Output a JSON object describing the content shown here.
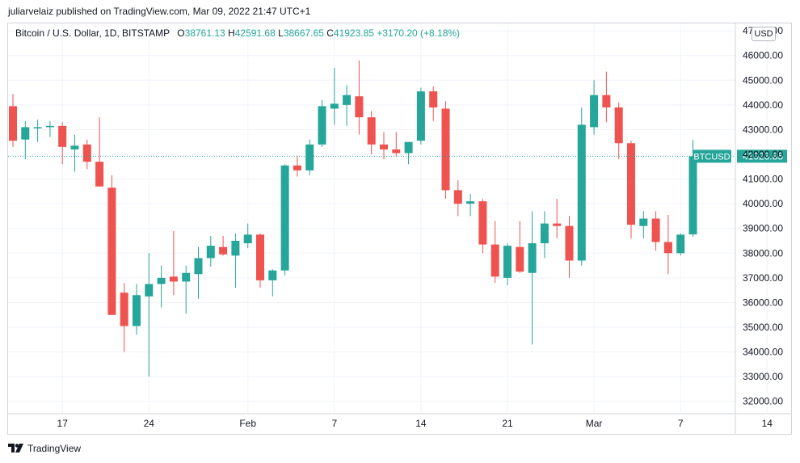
{
  "header": {
    "published_by": "juliarvelaiz published on TradingView.com, Mar 09, 2022 21:47 UTC+1"
  },
  "legend": {
    "symbol": "Bitcoin / U.S. Dollar, 1D, BITSTAMP",
    "o_label": "O",
    "o_value": "38761.13",
    "h_label": "H",
    "h_value": "42591.68",
    "l_label": "L",
    "l_value": "38667.65",
    "c_label": "C",
    "c_value": "41923.85",
    "change": "+3170.20 (+8.18%)"
  },
  "currency_button": "USD",
  "footer": {
    "brand": "TradingView"
  },
  "colors": {
    "up": "#26a69a",
    "down": "#ef5350",
    "grid": "#f0f3fa",
    "axis_text": "#131722"
  },
  "chart_data": {
    "type": "candlestick",
    "symbol": "BTCUSD",
    "last_price": 41923.85,
    "last_price_label": "41923.85",
    "grid": true,
    "ylim": [
      31500,
      47300
    ],
    "y_ticks": [
      32000,
      33000,
      34000,
      35000,
      36000,
      37000,
      38000,
      39000,
      40000,
      41000,
      42000,
      43000,
      44000,
      45000,
      46000,
      47000
    ],
    "y_tick_labels": [
      "32000.00",
      "33000.00",
      "34000.00",
      "35000.00",
      "36000.00",
      "37000.00",
      "38000.00",
      "39000.00",
      "40000.00",
      "41000.00",
      "42000.00",
      "43000.00",
      "44000.00",
      "45000.00",
      "46000.00",
      "47000.00"
    ],
    "x_ticks": [
      {
        "day": 4,
        "label": "17"
      },
      {
        "day": 11,
        "label": "24"
      },
      {
        "day": 19,
        "label": "Feb"
      },
      {
        "day": 26,
        "label": "7"
      },
      {
        "day": 33,
        "label": "14"
      },
      {
        "day": 40,
        "label": "21"
      },
      {
        "day": 47,
        "label": "Mar"
      },
      {
        "day": 54,
        "label": "7"
      },
      {
        "day": 61,
        "label": "14"
      }
    ],
    "candles": [
      {
        "day": 0,
        "o": 43950,
        "h": 44450,
        "l": 42300,
        "c": 42550
      },
      {
        "day": 1,
        "o": 42600,
        "h": 43350,
        "l": 41800,
        "c": 43100
      },
      {
        "day": 2,
        "o": 43100,
        "h": 43400,
        "l": 42500,
        "c": 43100
      },
      {
        "day": 3,
        "o": 43100,
        "h": 43350,
        "l": 42700,
        "c": 43150
      },
      {
        "day": 4,
        "o": 43150,
        "h": 43300,
        "l": 41600,
        "c": 42300
      },
      {
        "day": 5,
        "o": 42200,
        "h": 42800,
        "l": 41300,
        "c": 42350
      },
      {
        "day": 6,
        "o": 42400,
        "h": 42600,
        "l": 41400,
        "c": 41700
      },
      {
        "day": 7,
        "o": 41700,
        "h": 43500,
        "l": 40700,
        "c": 40700
      },
      {
        "day": 8,
        "o": 40650,
        "h": 41150,
        "l": 35500,
        "c": 35500
      },
      {
        "day": 9,
        "o": 36400,
        "h": 36800,
        "l": 34000,
        "c": 35050
      },
      {
        "day": 10,
        "o": 35050,
        "h": 36750,
        "l": 34700,
        "c": 36300
      },
      {
        "day": 11,
        "o": 36250,
        "h": 38000,
        "l": 33000,
        "c": 36750
      },
      {
        "day": 12,
        "o": 36750,
        "h": 37500,
        "l": 35800,
        "c": 37000
      },
      {
        "day": 13,
        "o": 37050,
        "h": 38900,
        "l": 36300,
        "c": 36850
      },
      {
        "day": 14,
        "o": 36850,
        "h": 37500,
        "l": 35550,
        "c": 37200
      },
      {
        "day": 15,
        "o": 37150,
        "h": 38250,
        "l": 36150,
        "c": 37800
      },
      {
        "day": 16,
        "o": 37800,
        "h": 38700,
        "l": 37450,
        "c": 38300
      },
      {
        "day": 17,
        "o": 38250,
        "h": 38700,
        "l": 37900,
        "c": 37950
      },
      {
        "day": 18,
        "o": 37900,
        "h": 38800,
        "l": 36600,
        "c": 38500
      },
      {
        "day": 19,
        "o": 38400,
        "h": 39200,
        "l": 38200,
        "c": 38750
      },
      {
        "day": 20,
        "o": 38750,
        "h": 38800,
        "l": 36600,
        "c": 36900
      },
      {
        "day": 21,
        "o": 36900,
        "h": 37350,
        "l": 36250,
        "c": 37300
      },
      {
        "day": 22,
        "o": 37300,
        "h": 41600,
        "l": 37100,
        "c": 41550
      },
      {
        "day": 23,
        "o": 41550,
        "h": 41950,
        "l": 41100,
        "c": 41350
      },
      {
        "day": 24,
        "o": 41350,
        "h": 42600,
        "l": 41150,
        "c": 42400
      },
      {
        "day": 25,
        "o": 42400,
        "h": 44200,
        "l": 42300,
        "c": 43950
      },
      {
        "day": 26,
        "o": 43850,
        "h": 45500,
        "l": 43200,
        "c": 44050
      },
      {
        "day": 27,
        "o": 44000,
        "h": 44800,
        "l": 43150,
        "c": 44400
      },
      {
        "day": 28,
        "o": 44350,
        "h": 45800,
        "l": 42800,
        "c": 43500
      },
      {
        "day": 29,
        "o": 43500,
        "h": 43750,
        "l": 42000,
        "c": 42400
      },
      {
        "day": 30,
        "o": 42400,
        "h": 42900,
        "l": 41800,
        "c": 42200
      },
      {
        "day": 31,
        "o": 42200,
        "h": 42900,
        "l": 41900,
        "c": 42050
      },
      {
        "day": 32,
        "o": 42050,
        "h": 42500,
        "l": 41600,
        "c": 42500
      },
      {
        "day": 33,
        "o": 42550,
        "h": 44700,
        "l": 42400,
        "c": 44550
      },
      {
        "day": 34,
        "o": 44550,
        "h": 44750,
        "l": 43350,
        "c": 43900
      },
      {
        "day": 35,
        "o": 43850,
        "h": 44150,
        "l": 40200,
        "c": 40550
      },
      {
        "day": 36,
        "o": 40550,
        "h": 40950,
        "l": 39500,
        "c": 40000
      },
      {
        "day": 37,
        "o": 40000,
        "h": 40400,
        "l": 39500,
        "c": 40100
      },
      {
        "day": 38,
        "o": 40100,
        "h": 40200,
        "l": 38000,
        "c": 38350
      },
      {
        "day": 39,
        "o": 38350,
        "h": 39300,
        "l": 36800,
        "c": 37050
      },
      {
        "day": 40,
        "o": 37000,
        "h": 38400,
        "l": 36700,
        "c": 38300
      },
      {
        "day": 41,
        "o": 38250,
        "h": 39300,
        "l": 37200,
        "c": 37250
      },
      {
        "day": 42,
        "o": 37200,
        "h": 39700,
        "l": 34300,
        "c": 38400
      },
      {
        "day": 43,
        "o": 38400,
        "h": 39700,
        "l": 37800,
        "c": 39200
      },
      {
        "day": 44,
        "o": 39200,
        "h": 40200,
        "l": 38600,
        "c": 39100
      },
      {
        "day": 45,
        "o": 39100,
        "h": 39500,
        "l": 37000,
        "c": 37700
      },
      {
        "day": 46,
        "o": 37700,
        "h": 43900,
        "l": 37500,
        "c": 43200
      },
      {
        "day": 47,
        "o": 43100,
        "h": 45000,
        "l": 42800,
        "c": 44400
      },
      {
        "day": 48,
        "o": 44400,
        "h": 45350,
        "l": 43300,
        "c": 43900
      },
      {
        "day": 49,
        "o": 43900,
        "h": 44100,
        "l": 41800,
        "c": 42450
      },
      {
        "day": 50,
        "o": 42450,
        "h": 42550,
        "l": 38600,
        "c": 39150
      },
      {
        "day": 51,
        "o": 39100,
        "h": 39700,
        "l": 38600,
        "c": 39400
      },
      {
        "day": 52,
        "o": 39400,
        "h": 39700,
        "l": 38100,
        "c": 38450
      },
      {
        "day": 53,
        "o": 38450,
        "h": 39550,
        "l": 37150,
        "c": 38000
      },
      {
        "day": 54,
        "o": 38000,
        "h": 38800,
        "l": 37900,
        "c": 38750
      },
      {
        "day": 55,
        "o": 38761.13,
        "h": 42591.68,
        "l": 38667.65,
        "c": 41923.85
      }
    ]
  }
}
